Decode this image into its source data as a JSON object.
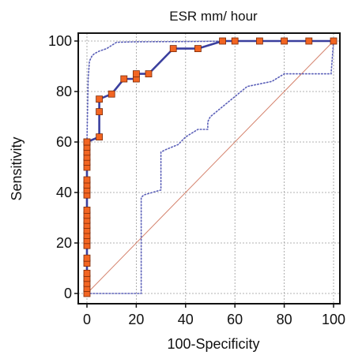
{
  "chart_data": {
    "type": "line",
    "title": "ESR mm/ hour",
    "xlabel": "100-Specificity",
    "ylabel": "Sensitivity",
    "xlim": [
      0,
      100
    ],
    "ylim": [
      0,
      100
    ],
    "xticks": [
      "0",
      "20",
      "40",
      "60",
      "80",
      "100"
    ],
    "yticks": [
      "0",
      "20",
      "40",
      "60",
      "80",
      "100"
    ],
    "grid": true,
    "colors": {
      "roc_line": "#3a3f9e",
      "marker_fill": "#f26522",
      "marker_edge": "#7a2a0a",
      "ci_line": "#5a5fb8",
      "reference_line": "#d4806a",
      "grid": "#9a9a9a"
    },
    "series": [
      {
        "role": "roc-curve",
        "style": "solid-with-square-markers",
        "x": [
          0,
          0,
          0,
          0,
          0,
          0,
          0,
          0,
          0,
          0,
          0,
          0,
          0,
          0,
          0,
          0,
          0,
          0,
          0,
          0,
          0,
          0,
          0,
          0,
          0,
          0,
          5,
          5,
          5,
          10,
          15,
          20,
          20,
          25,
          35,
          45,
          55,
          60,
          70,
          80,
          90,
          100
        ],
        "y": [
          0,
          2,
          4,
          6,
          8,
          12,
          14,
          19,
          21,
          23,
          25,
          27,
          29,
          31,
          33,
          39,
          41,
          43,
          45,
          50,
          52,
          54,
          56,
          58,
          60,
          60,
          62,
          72,
          77,
          79,
          85,
          85,
          87,
          87,
          97,
          97,
          100,
          100,
          100,
          100,
          100,
          100
        ]
      },
      {
        "role": "upper-ci-bound",
        "style": "dotted",
        "x": [
          0,
          0.5,
          1,
          2,
          3,
          5,
          8,
          12,
          20,
          40,
          60,
          80,
          100
        ],
        "y": [
          60,
          85,
          92,
          94,
          95,
          96,
          97,
          99.5,
          99.7,
          99.8,
          100,
          100,
          100
        ]
      },
      {
        "role": "lower-ci-bound",
        "style": "dotted",
        "x": [
          0,
          22,
          22,
          23,
          30,
          30,
          32,
          37,
          38,
          40,
          45,
          49,
          49,
          50,
          55,
          60,
          65,
          70,
          75,
          80,
          99,
          100
        ],
        "y": [
          0,
          0,
          38,
          39,
          41,
          56,
          57,
          59,
          60,
          62,
          65,
          65,
          68,
          70,
          74,
          78,
          82,
          83,
          84,
          87,
          87,
          100
        ]
      },
      {
        "role": "reference-diagonal",
        "style": "thin-solid",
        "x": [
          0,
          100
        ],
        "y": [
          0,
          100
        ]
      }
    ]
  }
}
